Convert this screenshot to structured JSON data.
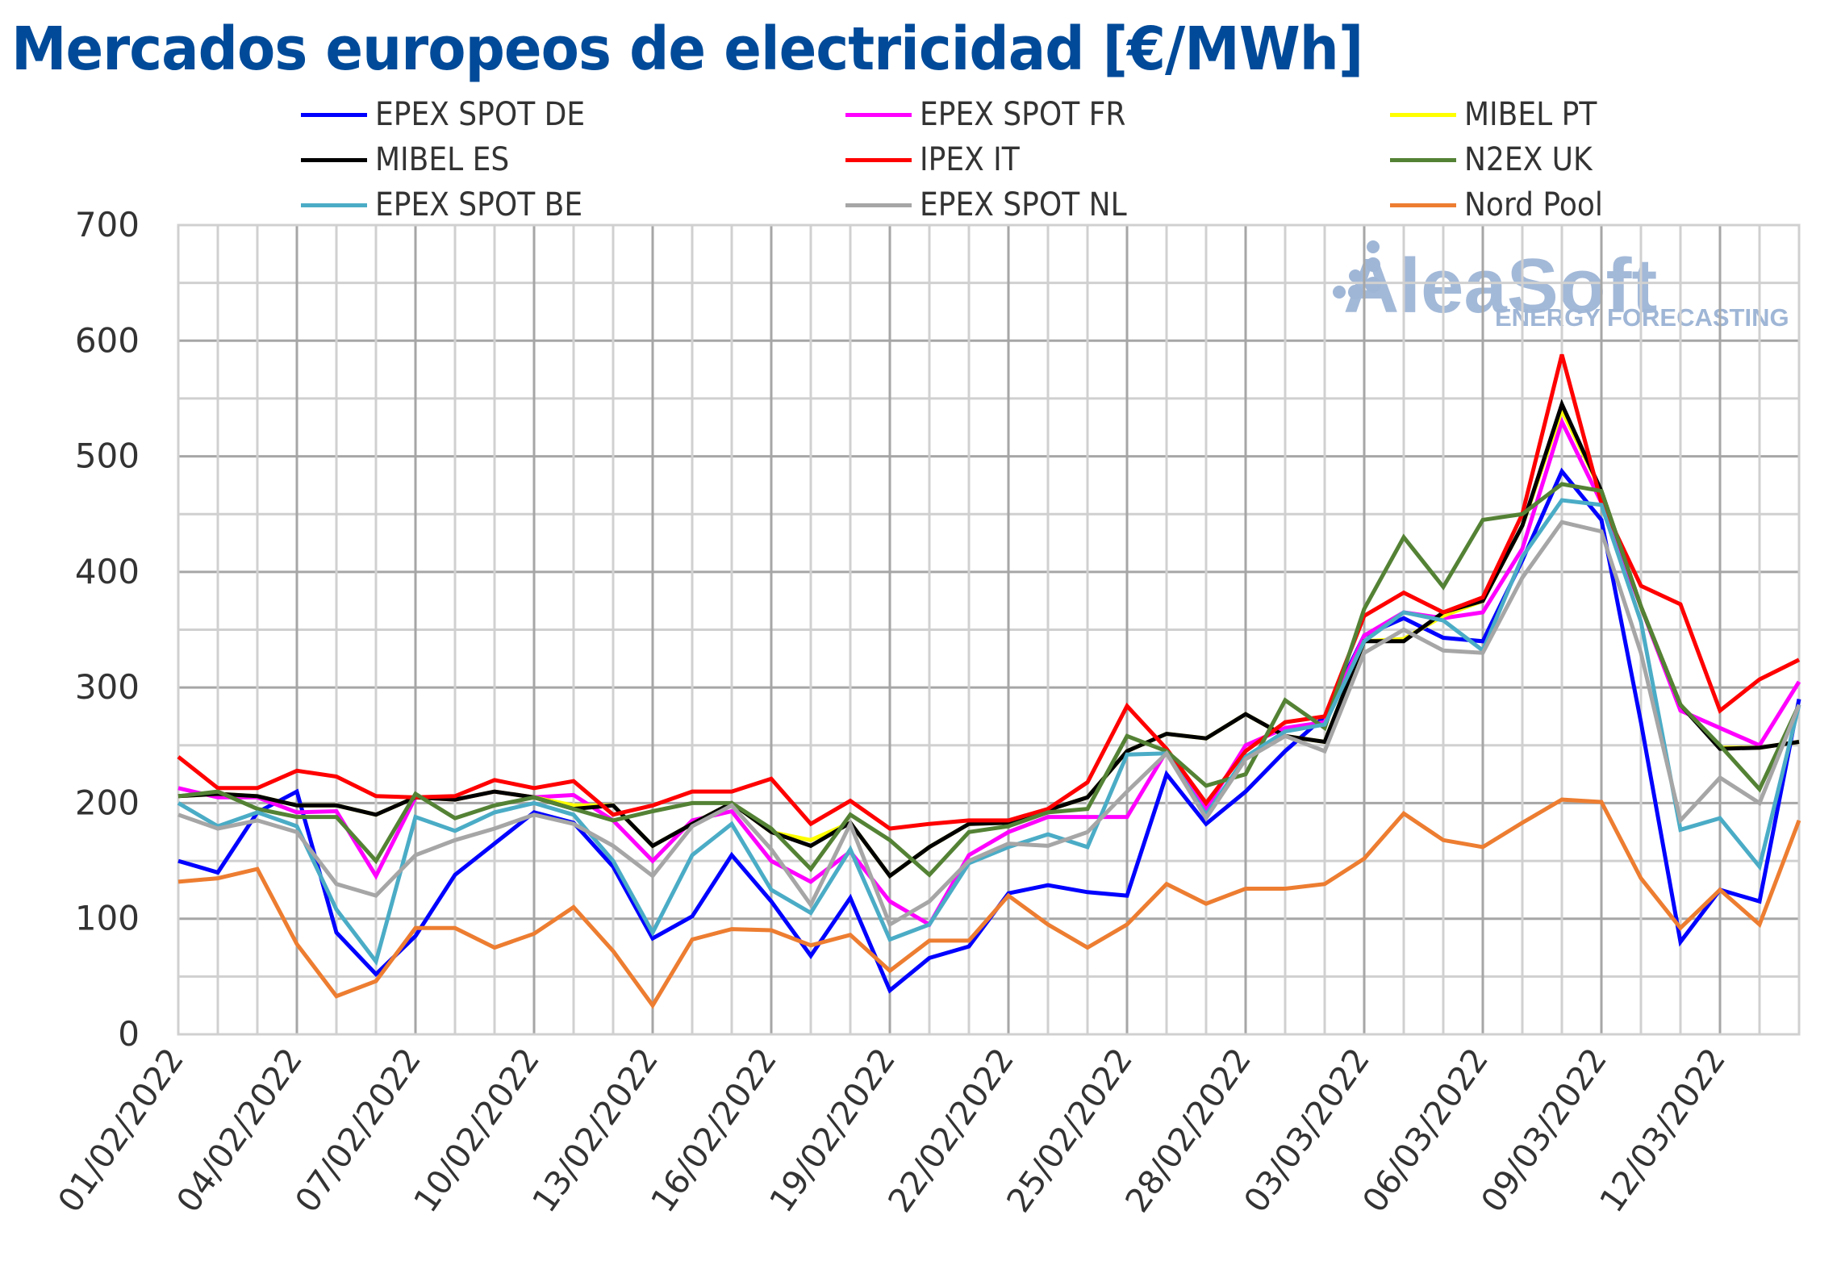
{
  "chart_data": {
    "type": "line",
    "title": "Mercados europeos de electricidad [€/MWh]",
    "xlabel": "",
    "ylabel": "",
    "ylim": [
      0,
      700
    ],
    "yticks": [
      0,
      100,
      200,
      300,
      400,
      500,
      600,
      700
    ],
    "grid": true,
    "legend_position": "top",
    "x": [
      "01/02/2022",
      "02/02/2022",
      "03/02/2022",
      "04/02/2022",
      "05/02/2022",
      "06/02/2022",
      "07/02/2022",
      "08/02/2022",
      "09/02/2022",
      "10/02/2022",
      "11/02/2022",
      "12/02/2022",
      "13/02/2022",
      "14/02/2022",
      "15/02/2022",
      "16/02/2022",
      "17/02/2022",
      "18/02/2022",
      "19/02/2022",
      "20/02/2022",
      "21/02/2022",
      "22/02/2022",
      "23/02/2022",
      "24/02/2022",
      "25/02/2022",
      "26/02/2022",
      "27/02/2022",
      "28/02/2022",
      "01/03/2022",
      "02/03/2022",
      "03/03/2022",
      "04/03/2022",
      "05/03/2022",
      "06/03/2022",
      "07/03/2022",
      "08/03/2022",
      "09/03/2022",
      "10/03/2022",
      "11/03/2022",
      "12/03/2022",
      "13/03/2022",
      "14/03/2022"
    ],
    "xtick_labels": [
      "01/02/2022",
      "04/02/2022",
      "07/02/2022",
      "10/02/2022",
      "13/02/2022",
      "16/02/2022",
      "19/02/2022",
      "22/02/2022",
      "25/02/2022",
      "28/02/2022",
      "03/03/2022",
      "06/03/2022",
      "09/03/2022",
      "12/03/2022"
    ],
    "series": [
      {
        "name": "EPEX SPOT DE",
        "color": "#0000ff",
        "values": [
          150,
          140,
          192,
          210,
          88,
          52,
          85,
          138,
          165,
          192,
          183,
          145,
          83,
          102,
          155,
          115,
          68,
          118,
          38,
          66,
          76,
          122,
          129,
          123,
          120,
          225,
          182,
          210,
          245,
          275,
          345,
          360,
          343,
          340,
          410,
          487,
          445,
          270,
          80,
          125,
          115,
          290
        ]
      },
      {
        "name": "EPEX SPOT FR",
        "color": "#ff00ff",
        "values": [
          213,
          205,
          205,
          192,
          193,
          137,
          205,
          203,
          210,
          205,
          207,
          185,
          150,
          185,
          193,
          150,
          132,
          158,
          115,
          95,
          155,
          175,
          188,
          188,
          188,
          245,
          195,
          250,
          265,
          270,
          345,
          365,
          360,
          365,
          420,
          530,
          460,
          370,
          280,
          265,
          250,
          305
        ]
      },
      {
        "name": "MIBEL PT",
        "color": "#ffff00",
        "values": [
          206,
          208,
          206,
          198,
          198,
          190,
          205,
          203,
          210,
          205,
          198,
          198,
          163,
          182,
          200,
          175,
          168,
          183,
          137,
          162,
          182,
          183,
          194,
          205,
          245,
          260,
          256,
          277,
          258,
          253,
          340,
          342,
          362,
          375,
          440,
          540,
          470,
          370,
          285,
          248,
          248,
          253
        ]
      },
      {
        "name": "MIBEL ES",
        "color": "#000000",
        "values": [
          206,
          208,
          206,
          198,
          198,
          190,
          205,
          203,
          210,
          205,
          195,
          198,
          163,
          182,
          200,
          175,
          163,
          183,
          137,
          162,
          182,
          183,
          194,
          205,
          245,
          260,
          256,
          277,
          258,
          253,
          340,
          340,
          365,
          375,
          440,
          545,
          470,
          370,
          285,
          247,
          248,
          253
        ]
      },
      {
        "name": "IPEX IT",
        "color": "#ff0000",
        "values": [
          240,
          213,
          213,
          228,
          223,
          206,
          205,
          206,
          220,
          213,
          219,
          190,
          198,
          210,
          210,
          221,
          182,
          202,
          178,
          182,
          185,
          185,
          195,
          218,
          284,
          247,
          200,
          245,
          270,
          275,
          362,
          382,
          365,
          378,
          450,
          588,
          460,
          388,
          372,
          280,
          307,
          324
        ]
      },
      {
        "name": "N2EX UK",
        "color": "#548235",
        "values": [
          206,
          210,
          195,
          188,
          188,
          150,
          208,
          187,
          198,
          205,
          195,
          185,
          193,
          200,
          200,
          178,
          143,
          190,
          168,
          138,
          175,
          180,
          192,
          195,
          258,
          245,
          215,
          225,
          289,
          265,
          368,
          430,
          387,
          445,
          450,
          476,
          470,
          370,
          285,
          250,
          212,
          285
        ]
      },
      {
        "name": "EPEX SPOT BE",
        "color": "#4bacc6",
        "values": [
          200,
          180,
          192,
          180,
          108,
          63,
          188,
          176,
          192,
          200,
          190,
          150,
          88,
          155,
          182,
          125,
          105,
          160,
          82,
          95,
          148,
          162,
          173,
          162,
          242,
          243,
          190,
          240,
          262,
          268,
          340,
          365,
          358,
          332,
          413,
          462,
          458,
          357,
          177,
          187,
          145,
          285
        ]
      },
      {
        "name": "EPEX SPOT NL",
        "color": "#a6a6a6",
        "values": [
          190,
          178,
          185,
          175,
          130,
          120,
          155,
          168,
          178,
          190,
          182,
          163,
          137,
          180,
          198,
          160,
          112,
          182,
          95,
          115,
          150,
          165,
          163,
          175,
          210,
          243,
          187,
          238,
          258,
          245,
          330,
          350,
          332,
          330,
          395,
          443,
          435,
          330,
          185,
          222,
          200,
          285
        ]
      },
      {
        "name": "Nord Pool",
        "color": "#ed7d31",
        "values": [
          132,
          135,
          143,
          78,
          33,
          46,
          92,
          92,
          75,
          87,
          110,
          72,
          25,
          82,
          91,
          90,
          77,
          86,
          55,
          81,
          81,
          120,
          95,
          75,
          95,
          130,
          113,
          126,
          126,
          130,
          152,
          191,
          168,
          162,
          183,
          203,
          201,
          135,
          92,
          125,
          95,
          185
        ]
      }
    ]
  },
  "watermark": {
    "brand": "AleaSoft",
    "tagline": "ENERGY FORECASTING"
  }
}
